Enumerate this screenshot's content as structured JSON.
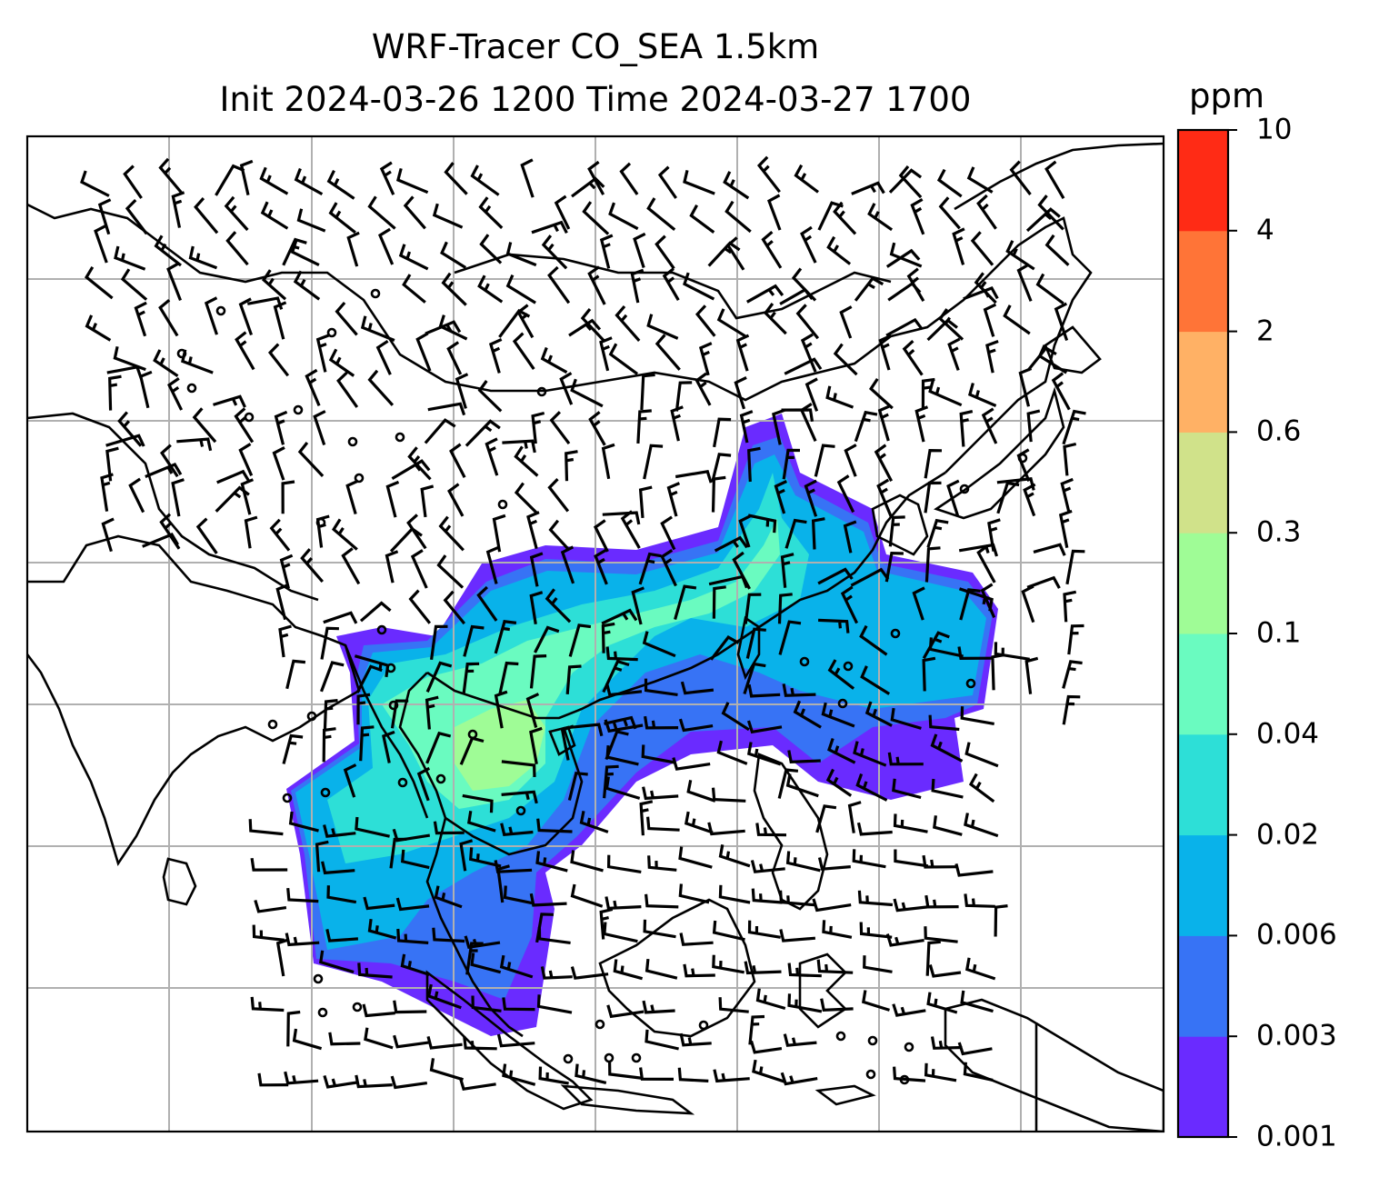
{
  "title": {
    "line1": "WRF-Tracer CO_SEA 1.5km",
    "line2": "Init 2024-03-26 1200 Time 2024-03-27 1700"
  },
  "colorbar": {
    "unit": "ppm",
    "ticks": [
      "0.001",
      "0.003",
      "0.006",
      "0.02",
      "0.04",
      "0.1",
      "0.3",
      "0.6",
      "2",
      "4",
      "10"
    ],
    "colors": [
      "#6a2bff",
      "#3773f5",
      "#09b2ea",
      "#2ddfd7",
      "#6afbc0",
      "#9ffc96",
      "#d0e28a",
      "#ffb165",
      "#ff7437",
      "#ff2b15"
    ]
  },
  "map": {
    "variable": "CO tracer concentration with wind barbs",
    "gridlines": true
  }
}
